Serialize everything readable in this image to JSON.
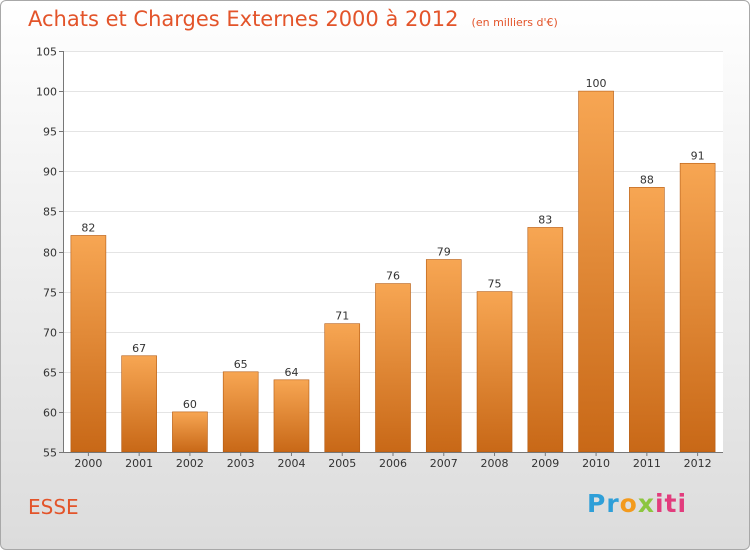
{
  "title": "Achats et Charges Externes 2000 à 2012",
  "subtitle": "(en milliers d'€)",
  "commune": "ESSE",
  "logo": {
    "p1": "Pr",
    "p2": "o",
    "p3": "x",
    "p4": "iti"
  },
  "colors": {
    "title": "#e3542a",
    "bar_top": "#f7a653",
    "bar_bottom": "#c86817",
    "logo": [
      "#2f9fd8",
      "#f39a1d",
      "#8cc63f",
      "#e23c7d"
    ]
  },
  "chart_data": {
    "type": "bar",
    "categories": [
      "2000",
      "2001",
      "2002",
      "2003",
      "2004",
      "2005",
      "2006",
      "2007",
      "2008",
      "2009",
      "2010",
      "2011",
      "2012"
    ],
    "values": [
      82,
      67,
      60,
      65,
      64,
      71,
      76,
      79,
      75,
      83,
      100,
      88,
      91
    ],
    "title": "Achats et Charges Externes 2000 à 2012",
    "subtitle": "(en milliers d'€)",
    "xlabel": "",
    "ylabel": "",
    "ylim": [
      55,
      105
    ],
    "yticks": [
      55,
      60,
      65,
      70,
      75,
      80,
      85,
      90,
      95,
      100,
      105
    ],
    "grid": true,
    "legend": "none",
    "data_labels": true
  }
}
